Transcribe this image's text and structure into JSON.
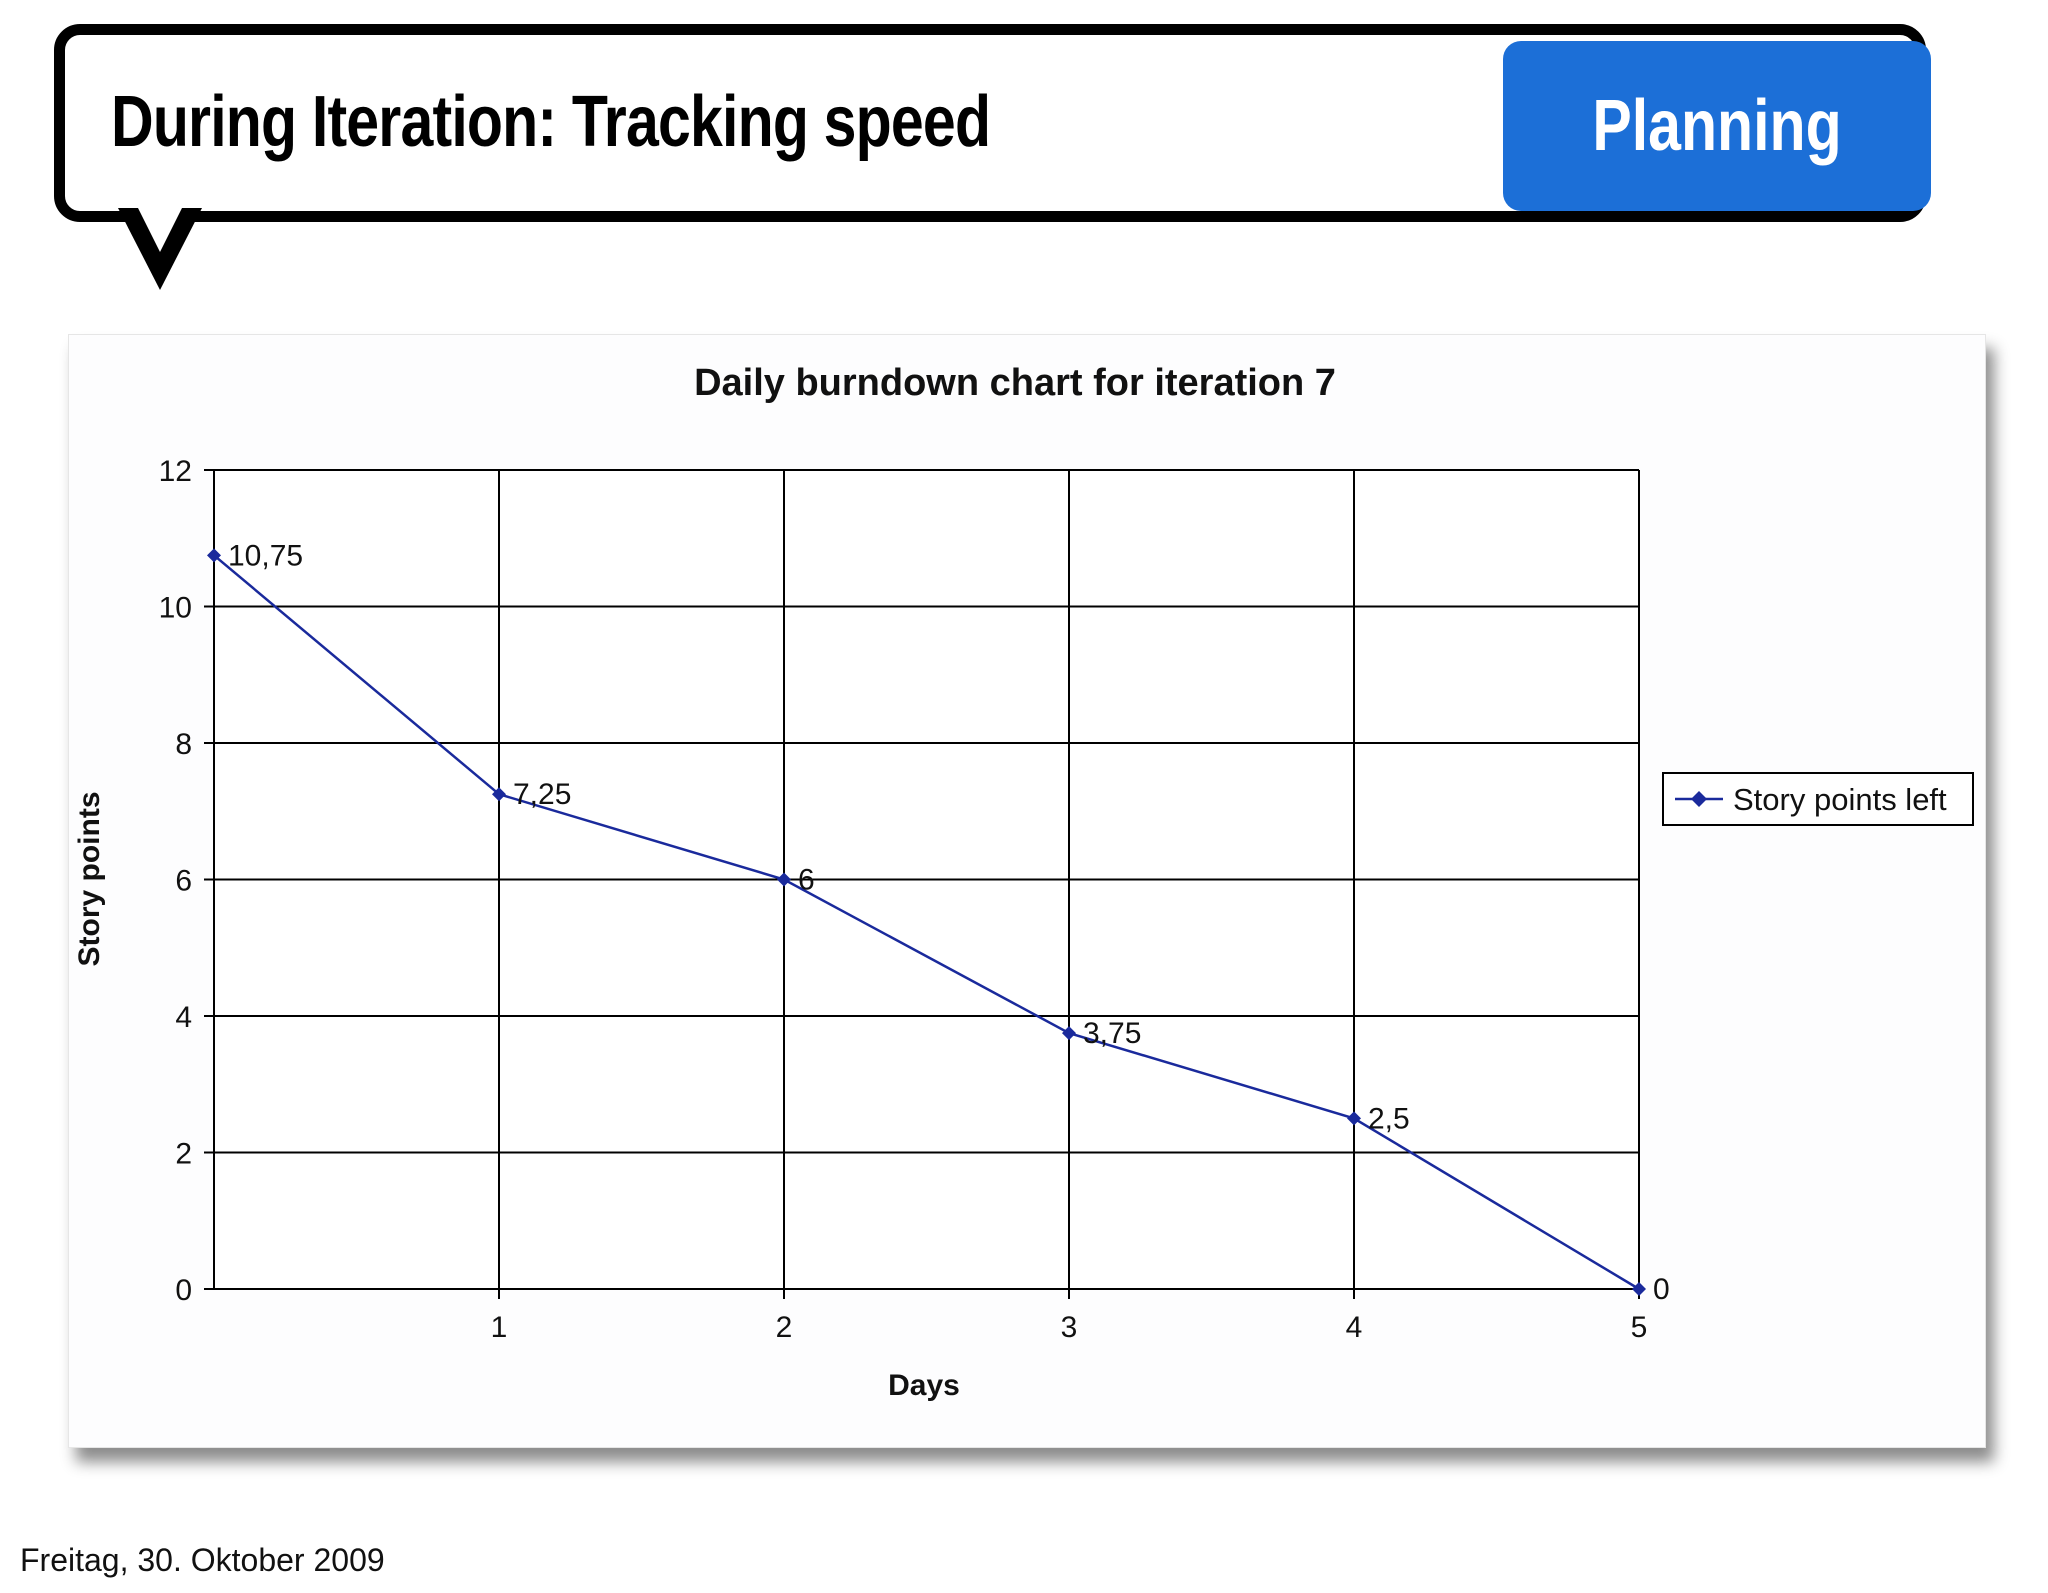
{
  "header": {
    "title": "During Iteration: Tracking speed",
    "badge": "Planning",
    "badge_color": "#1c6fd7"
  },
  "footer": {
    "date": "Freitag, 30. Oktober 2009"
  },
  "chart_data": {
    "type": "line",
    "title": "Daily burndown chart for iteration 7",
    "xlabel": "Days",
    "ylabel": "Story points",
    "x": [
      0,
      1,
      2,
      3,
      4,
      5
    ],
    "x_tick_labels": [
      "1",
      "2",
      "3",
      "4",
      "5"
    ],
    "y_ticks": [
      "0",
      "2",
      "4",
      "6",
      "8",
      "10",
      "12"
    ],
    "ylim": [
      0,
      12
    ],
    "xlim": [
      0,
      5
    ],
    "series": [
      {
        "name": "Story points left",
        "values": [
          10.75,
          7.25,
          6,
          3.75,
          2.5,
          0
        ],
        "labels": [
          "10,75",
          "7,25",
          "6",
          "3,75",
          "2,5",
          "0"
        ],
        "color": "#1a2a9c"
      }
    ],
    "grid": true,
    "legend": "right"
  }
}
